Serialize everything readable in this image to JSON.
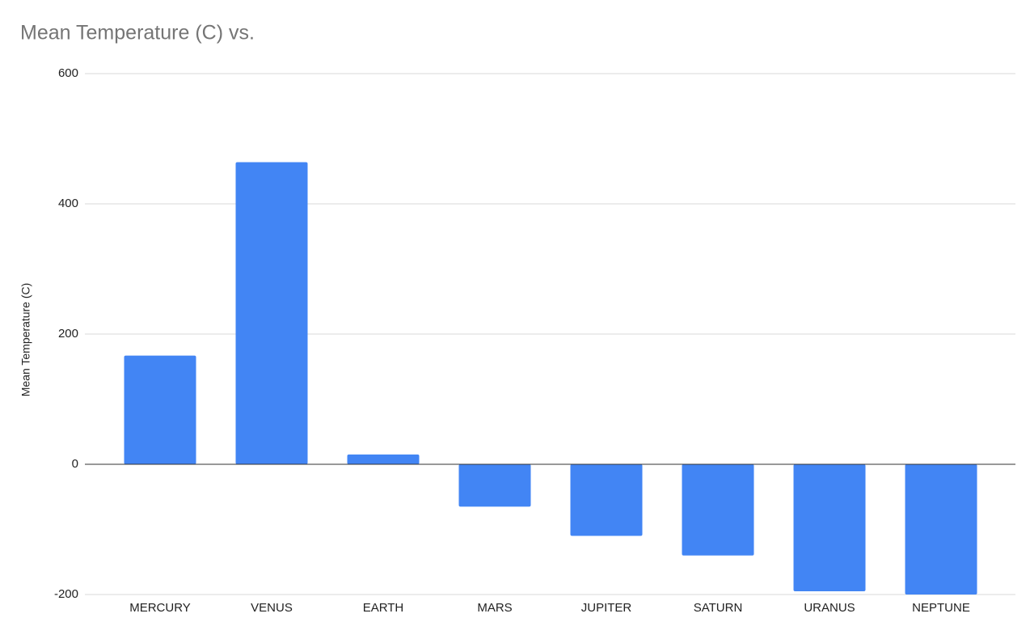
{
  "chart_data": {
    "type": "bar",
    "title": "Mean Temperature (C) vs.",
    "y_label": "Mean Temperature (C)",
    "categories": [
      "MERCURY",
      "VENUS",
      "EARTH",
      "MARS",
      "JUPITER",
      "SATURN",
      "URANUS",
      "NEPTUNE"
    ],
    "values": [
      167,
      464,
      15,
      -65,
      -110,
      -140,
      -195,
      -200
    ],
    "color": "#4285f4",
    "ylim": [
      -200,
      600
    ],
    "yticks": [
      -200,
      0,
      200,
      400,
      600
    ],
    "grid": true
  }
}
